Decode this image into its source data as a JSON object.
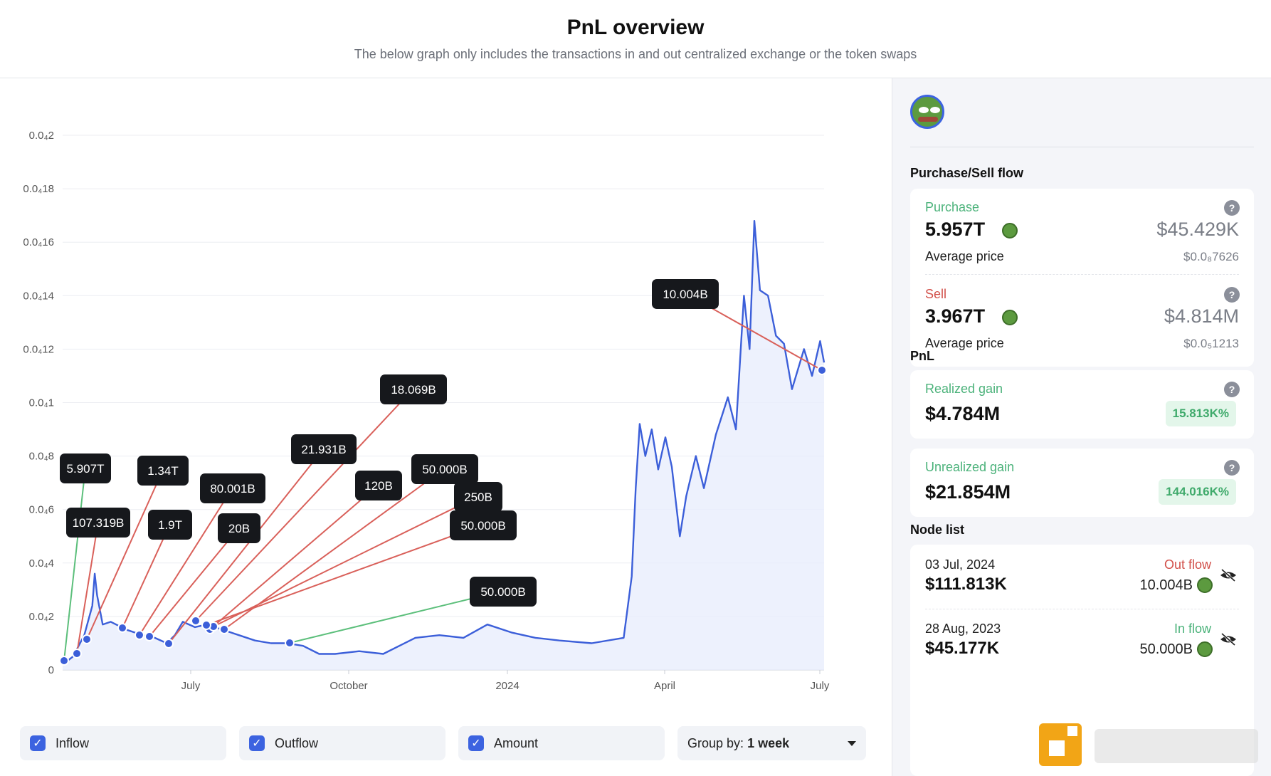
{
  "header": {
    "title": "PnL overview",
    "subtitle": "The below graph only includes the transactions in and out centralized exchange or the token swaps"
  },
  "colors": {
    "line": "#3c5fd9",
    "inflow": "#5cbf7b",
    "outflow": "#d9605a",
    "accent": "#3c63e0"
  },
  "chart_data": {
    "type": "line",
    "ylim": [
      0,
      0.2
    ],
    "y_ticks": [
      "0",
      "0.0₄2",
      "0.0₄4",
      "0.0₄6",
      "0.0₄8",
      "0.0₄1",
      "0.0₄12",
      "0.0₄14",
      "0.0₄16",
      "0.0₄18",
      "0.0₄2"
    ],
    "x_ticks": [
      "July",
      "October",
      "2024",
      "April",
      "July"
    ],
    "grid": true,
    "series": [
      {
        "points": [
          [
            0.0,
            0.2
          ],
          [
            0.013,
            0.5
          ],
          [
            0.027,
            1.3
          ],
          [
            0.037,
            2.4
          ],
          [
            0.04,
            3.6
          ],
          [
            0.043,
            2.8
          ],
          [
            0.05,
            1.7
          ],
          [
            0.06,
            1.8
          ],
          [
            0.08,
            1.5
          ],
          [
            0.1,
            1.3
          ],
          [
            0.115,
            1.2
          ],
          [
            0.13,
            1.0
          ],
          [
            0.14,
            1.3
          ],
          [
            0.15,
            1.8
          ],
          [
            0.165,
            1.6
          ],
          [
            0.18,
            1.7
          ],
          [
            0.2,
            1.5
          ],
          [
            0.22,
            1.3
          ],
          [
            0.24,
            1.1
          ],
          [
            0.26,
            1.0
          ],
          [
            0.28,
            1.0
          ],
          [
            0.3,
            0.9
          ],
          [
            0.32,
            0.6
          ],
          [
            0.34,
            0.6
          ],
          [
            0.37,
            0.7
          ],
          [
            0.4,
            0.6
          ],
          [
            0.42,
            0.9
          ],
          [
            0.44,
            1.2
          ],
          [
            0.47,
            1.3
          ],
          [
            0.5,
            1.2
          ],
          [
            0.53,
            1.7
          ],
          [
            0.56,
            1.4
          ],
          [
            0.59,
            1.2
          ],
          [
            0.62,
            1.1
          ],
          [
            0.66,
            1.0
          ],
          [
            0.7,
            1.2
          ],
          [
            0.71,
            3.5
          ],
          [
            0.715,
            6.8
          ],
          [
            0.72,
            9.2
          ],
          [
            0.727,
            8.0
          ],
          [
            0.735,
            9.0
          ],
          [
            0.743,
            7.5
          ],
          [
            0.752,
            8.7
          ],
          [
            0.76,
            7.6
          ],
          [
            0.77,
            5.0
          ],
          [
            0.778,
            6.5
          ],
          [
            0.79,
            8.0
          ],
          [
            0.8,
            6.8
          ],
          [
            0.815,
            8.8
          ],
          [
            0.83,
            10.2
          ],
          [
            0.84,
            9.0
          ],
          [
            0.85,
            14.0
          ],
          [
            0.857,
            12.0
          ],
          [
            0.863,
            16.8
          ],
          [
            0.87,
            14.2
          ],
          [
            0.88,
            14.0
          ],
          [
            0.89,
            12.5
          ],
          [
            0.9,
            12.2
          ],
          [
            0.91,
            10.5
          ],
          [
            0.925,
            12.0
          ],
          [
            0.935,
            11.0
          ],
          [
            0.945,
            12.3
          ],
          [
            0.95,
            11.5
          ]
        ]
      }
    ],
    "annotations": [
      {
        "label": "5.907T",
        "type": "inflow"
      },
      {
        "label": "107.319B",
        "type": "outflow"
      },
      {
        "label": "1.34T",
        "type": "outflow"
      },
      {
        "label": "1.9T",
        "type": "outflow"
      },
      {
        "label": "80.001B",
        "type": "outflow"
      },
      {
        "label": "20B",
        "type": "outflow"
      },
      {
        "label": "21.931B",
        "type": "outflow"
      },
      {
        "label": "18.069B",
        "type": "outflow"
      },
      {
        "label": "120B",
        "type": "outflow"
      },
      {
        "label": "50.000B",
        "type": "outflow"
      },
      {
        "label": "250B",
        "type": "outflow"
      },
      {
        "label": "50.000B",
        "type": "outflow"
      },
      {
        "label": "50.000B",
        "type": "inflow"
      },
      {
        "label": "10.004B",
        "type": "outflow"
      }
    ]
  },
  "controls": {
    "inflow": "Inflow",
    "outflow": "Outflow",
    "amount": "Amount",
    "group_label": "Group by:",
    "group_value": "1 week"
  },
  "side": {
    "flow_title": "Purchase/Sell flow",
    "purchase": {
      "label": "Purchase",
      "amount": "5.957T",
      "usd": "$45.429K",
      "avg_label": "Average price",
      "avg_value": "$0.0₈7626"
    },
    "sell": {
      "label": "Sell",
      "amount": "3.967T",
      "usd": "$4.814M",
      "avg_label": "Average price",
      "avg_value": "$0.0₅1213"
    },
    "pnl_title": "PnL",
    "realized": {
      "label": "Realized gain",
      "value": "$4.784M",
      "pct": "15.813K%"
    },
    "unrealized": {
      "label": "Unrealized gain",
      "value": "$21.854M",
      "pct": "144.016K%"
    },
    "node_title": "Node list",
    "nodes": [
      {
        "date": "03 Jul, 2024",
        "type": "Out flow",
        "value": "$111.813K",
        "amount": "10.004B"
      },
      {
        "date": "28 Aug, 2023",
        "type": "In flow",
        "value": "$45.177K",
        "amount": "50.000B"
      }
    ]
  }
}
